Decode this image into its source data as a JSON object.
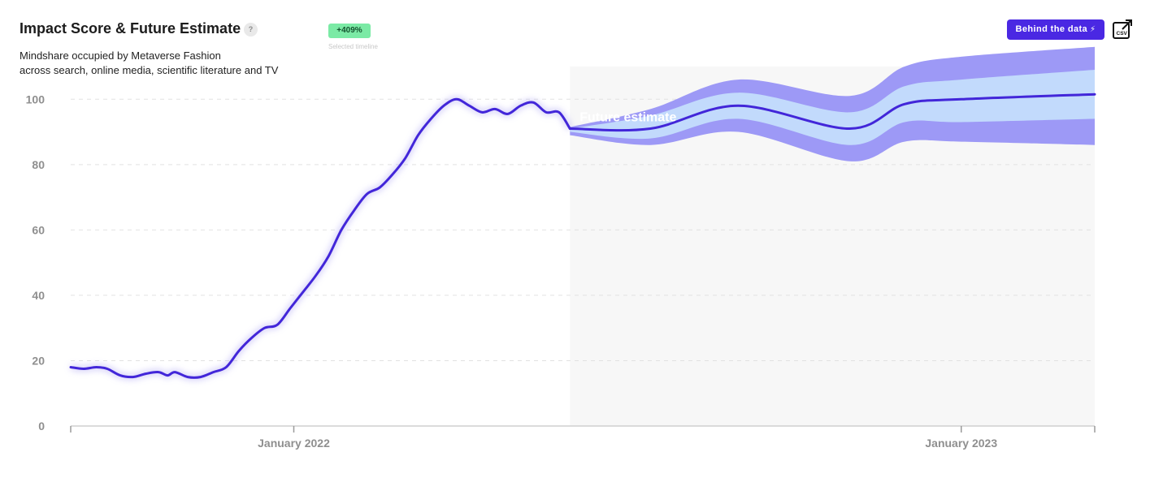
{
  "header": {
    "title": "Impact Score & Future Estimate",
    "help_label": "?",
    "subtitle_line1": "Mindshare occupied by Metaverse Fashion",
    "subtitle_line2": "across search, online media, scientific literature and TV",
    "growth_badge": "+409%",
    "timeline_caption": "Selected timeline",
    "behind_label": "Behind the data",
    "csv_label": "CSV"
  },
  "colors": {
    "line": "#4226d9",
    "band_outer": "#9d99f6",
    "band_inner": "#c2dafc",
    "forecast_bg": "#f7f7f7",
    "badge": "#7beaa5",
    "button": "#4a28e3"
  },
  "chart_data": {
    "type": "line",
    "title": "Impact Score & Future Estimate",
    "xlabel": "",
    "ylabel": "",
    "ylim": [
      0,
      110
    ],
    "yticks": [
      0,
      20,
      40,
      60,
      80,
      100
    ],
    "xlim": [
      "2021-09-01",
      "2023-03-15"
    ],
    "x_ticks": [
      {
        "date": "2022-01-01",
        "label": "January 2022"
      },
      {
        "date": "2023-01-01",
        "label": "January 2023"
      }
    ],
    "grid": "horizontal dashed",
    "annotation": "Future estimate",
    "series": [
      {
        "kind": "historical",
        "points": [
          [
            "2021-09-01",
            18
          ],
          [
            "2021-09-08",
            17.5
          ],
          [
            "2021-09-15",
            18
          ],
          [
            "2021-09-21",
            17.5
          ],
          [
            "2021-09-28",
            15.5
          ],
          [
            "2021-10-05",
            15
          ],
          [
            "2021-10-12",
            16
          ],
          [
            "2021-10-19",
            16.5
          ],
          [
            "2021-10-24",
            15.5
          ],
          [
            "2021-10-28",
            16.5
          ],
          [
            "2021-11-04",
            15
          ],
          [
            "2021-11-11",
            15
          ],
          [
            "2021-11-18",
            16.5
          ],
          [
            "2021-11-25",
            18
          ],
          [
            "2021-12-02",
            23
          ],
          [
            "2021-12-09",
            27
          ],
          [
            "2021-12-16",
            30
          ],
          [
            "2021-12-23",
            31
          ],
          [
            "2021-12-30",
            36
          ],
          [
            "2022-01-06",
            41
          ],
          [
            "2022-01-13",
            46
          ],
          [
            "2022-01-20",
            52
          ],
          [
            "2022-01-27",
            60
          ],
          [
            "2022-02-03",
            66
          ],
          [
            "2022-02-10",
            71
          ],
          [
            "2022-02-17",
            73
          ],
          [
            "2022-02-24",
            77
          ],
          [
            "2022-03-03",
            82
          ],
          [
            "2022-03-10",
            89
          ],
          [
            "2022-03-17",
            94
          ],
          [
            "2022-03-24",
            98
          ],
          [
            "2022-03-31",
            100
          ],
          [
            "2022-04-07",
            98
          ],
          [
            "2022-04-14",
            96
          ],
          [
            "2022-04-21",
            97
          ],
          [
            "2022-04-28",
            95.5
          ],
          [
            "2022-05-05",
            98
          ],
          [
            "2022-05-12",
            99
          ],
          [
            "2022-05-19",
            96
          ],
          [
            "2022-05-26",
            96
          ],
          [
            "2022-06-01",
            91
          ]
        ]
      },
      {
        "kind": "forecast",
        "points": [
          [
            "2022-06-01",
            91
          ],
          [
            "2022-07-15",
            91
          ],
          [
            "2022-09-01",
            98
          ],
          [
            "2022-11-01",
            91
          ],
          [
            "2022-12-01",
            98.5
          ],
          [
            "2023-01-01",
            100
          ],
          [
            "2023-03-15",
            101.5
          ]
        ],
        "inner_band": [
          [
            "2022-06-01",
            90,
            91
          ],
          [
            "2022-07-15",
            88,
            95
          ],
          [
            "2022-09-01",
            94,
            102
          ],
          [
            "2022-11-01",
            86,
            96
          ],
          [
            "2022-12-01",
            93,
            104
          ],
          [
            "2023-01-01",
            93,
            106
          ],
          [
            "2023-03-15",
            94,
            109
          ]
        ],
        "outer_band": [
          [
            "2022-06-01",
            89,
            91.5
          ],
          [
            "2022-07-15",
            86,
            97
          ],
          [
            "2022-09-01",
            90,
            106
          ],
          [
            "2022-11-01",
            81,
            101
          ],
          [
            "2022-12-01",
            87,
            110
          ],
          [
            "2023-01-01",
            87,
            113
          ],
          [
            "2023-03-15",
            86,
            116
          ]
        ]
      }
    ]
  }
}
